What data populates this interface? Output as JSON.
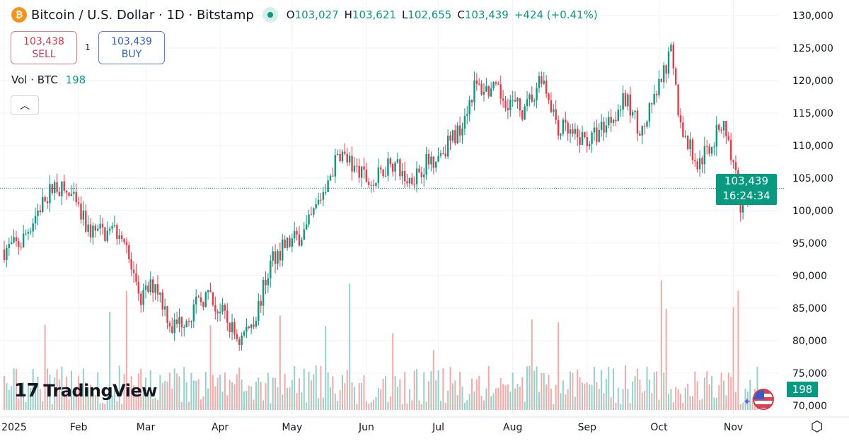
{
  "header": {
    "symbol": "Bitcoin / U.S. Dollar · 1D · Bitstamp",
    "icon": "bitcoin-icon",
    "open_label": "O",
    "open": "103,027",
    "high_label": "H",
    "high": "103,621",
    "low_label": "L",
    "low": "102,655",
    "close_label": "C",
    "close": "103,439",
    "change": "+424 (+0.41%)"
  },
  "trade": {
    "sell_price": "103,438",
    "sell_label": "SELL",
    "quantity": "1",
    "buy_price": "103,439",
    "buy_label": "BUY"
  },
  "volume_legend": {
    "label": "Vol · BTC",
    "value": "198"
  },
  "collapse_icon": "chevron-up-icon",
  "logo": "TradingView",
  "current_price_tag": {
    "price": "103,439",
    "countdown": "16:24:34"
  },
  "volume_tag": "198",
  "colors": {
    "up": "#089981",
    "down": "#f23645",
    "up_volume": "#92d2c8",
    "down_volume": "#f7a9a7",
    "accent": "#089981"
  },
  "chart_data": {
    "type": "candlestick",
    "title": "Bitcoin / U.S. Dollar · 1D · Bitstamp",
    "y_ticks": [
      "130,000",
      "125,000",
      "120,000",
      "115,000",
      "110,000",
      "105,000",
      "100,000",
      "95,000",
      "90,000",
      "85,000",
      "80,000",
      "75,000",
      "70,000"
    ],
    "ylim": [
      70000,
      130000
    ],
    "x_ticks": [
      "2025",
      "Feb",
      "Mar",
      "Apr",
      "May",
      "Jun",
      "Jul",
      "Aug",
      "Sep",
      "Oct",
      "Nov"
    ],
    "approx_weekly_close": {
      "dates": [
        "2025-01-01",
        "2025-01-08",
        "2025-01-15",
        "2025-01-22",
        "2025-01-29",
        "2025-02-05",
        "2025-02-12",
        "2025-02-19",
        "2025-02-26",
        "2025-03-05",
        "2025-03-12",
        "2025-03-19",
        "2025-03-26",
        "2025-04-02",
        "2025-04-09",
        "2025-04-16",
        "2025-04-23",
        "2025-04-30",
        "2025-05-07",
        "2025-05-14",
        "2025-05-21",
        "2025-05-28",
        "2025-06-04",
        "2025-06-11",
        "2025-06-18",
        "2025-06-25",
        "2025-07-02",
        "2025-07-09",
        "2025-07-16",
        "2025-07-23",
        "2025-07-30",
        "2025-08-06",
        "2025-08-13",
        "2025-08-20",
        "2025-08-27",
        "2025-09-03",
        "2025-09-10",
        "2025-09-17",
        "2025-09-24",
        "2025-10-01",
        "2025-10-06",
        "2025-10-10",
        "2025-10-17",
        "2025-10-24",
        "2025-10-28",
        "2025-11-04",
        "2025-11-11"
      ],
      "values": [
        94000,
        95000,
        100000,
        104000,
        102000,
        97000,
        96500,
        97000,
        86000,
        89000,
        82000,
        84000,
        87000,
        84000,
        80000,
        84000,
        93000,
        95000,
        97000,
        103000,
        109000,
        106000,
        104000,
        108000,
        104500,
        107000,
        109000,
        112000,
        119000,
        118500,
        117000,
        115000,
        121000,
        113000,
        111000,
        111000,
        114000,
        117000,
        112000,
        119000,
        124000,
        113000,
        107000,
        111000,
        114000,
        101000,
        103439
      ]
    },
    "last_price": 103439,
    "grid": true
  }
}
